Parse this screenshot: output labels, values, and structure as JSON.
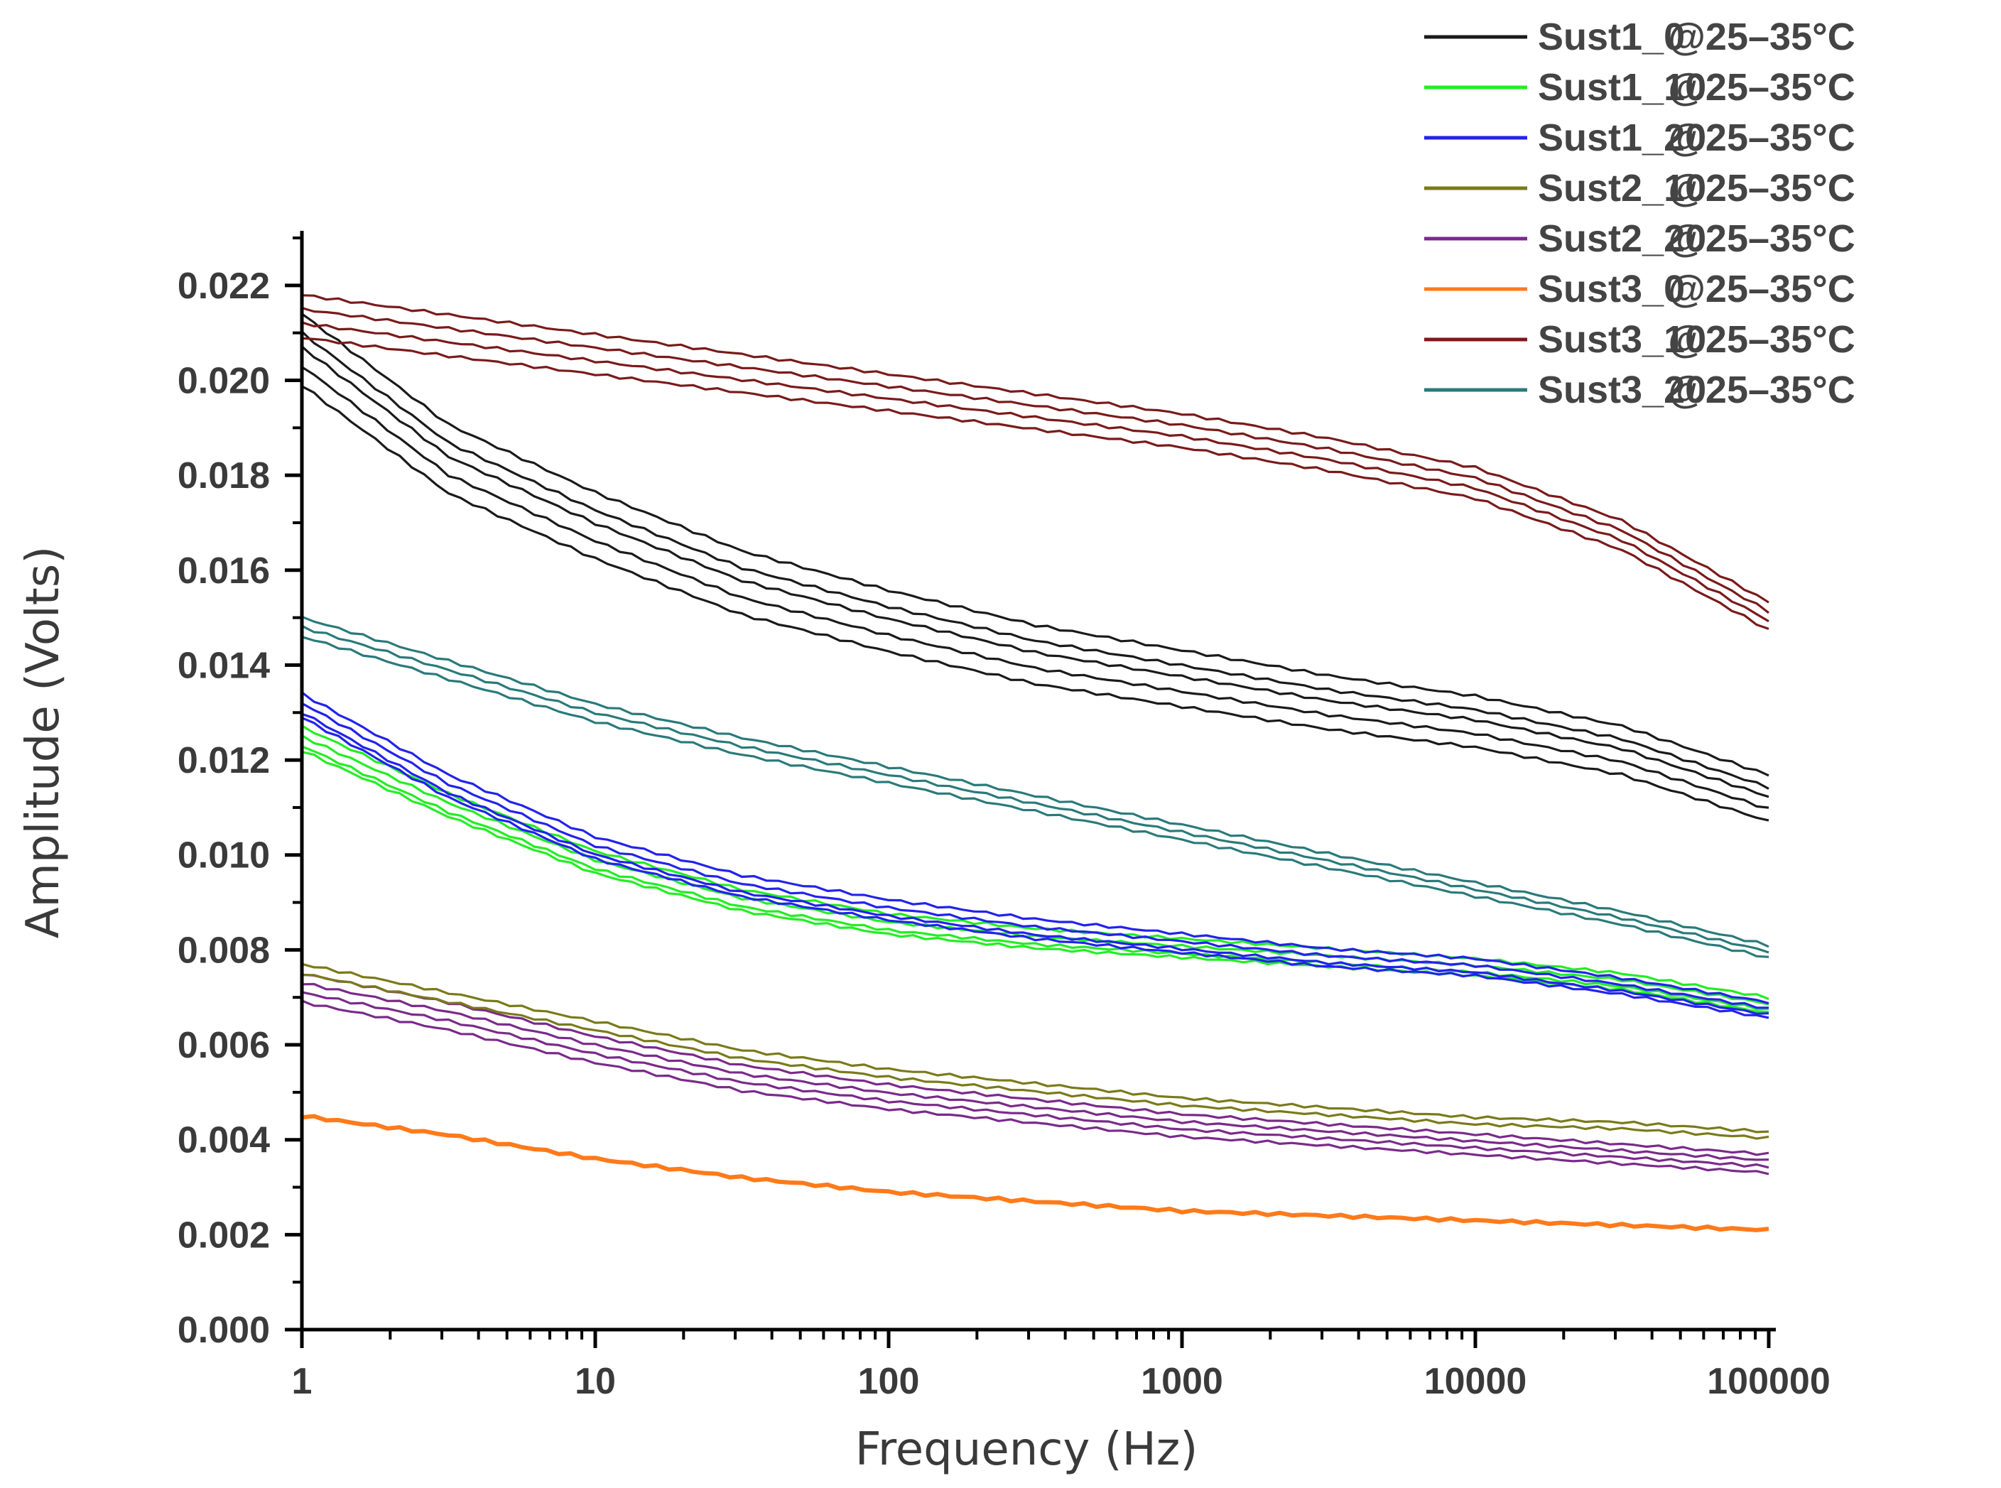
{
  "chart_data": {
    "type": "line",
    "title": "",
    "xlabel": "Frequency (Hz)",
    "ylabel": "Amplitude (Volts)",
    "xscale": "log",
    "xlim": [
      1,
      100000
    ],
    "ylim": [
      0,
      0.023
    ],
    "x_ticks": [
      1,
      10,
      100,
      1000,
      10000,
      100000
    ],
    "x_tick_labels": [
      "1",
      "10",
      "100",
      "1000",
      "10000",
      "100000"
    ],
    "y_ticks": [
      0,
      0.002,
      0.004,
      0.006,
      0.008,
      0.01,
      0.012,
      0.014,
      0.016,
      0.018,
      0.02,
      0.022
    ],
    "y_tick_labels": [
      "0.000",
      "0.002",
      "0.004",
      "0.006",
      "0.008",
      "0.010",
      "0.012",
      "0.014",
      "0.016",
      "0.018",
      "0.020",
      "0.022"
    ],
    "legend_position": "top-right",
    "legend_condition": "@25–35°C",
    "x": [
      1,
      3,
      10,
      30,
      100,
      300,
      1000,
      3000,
      10000,
      30000,
      100000
    ],
    "series": [
      {
        "name": "Sust1_0",
        "color": "#1a1a1a",
        "offsets": [
          0.0009,
          0.0005,
          0.0002,
          -0.0002,
          -0.0006
        ],
        "values": [
          0.0205,
          0.0182,
          0.0168,
          0.0156,
          0.0148,
          0.0141,
          0.0136,
          0.0131,
          0.0127,
          0.0121,
          0.0111
        ]
      },
      {
        "name": "Sust1_10",
        "color": "#22ee22",
        "offsets": [
          0.0003,
          0.0001,
          -0.0001,
          -0.0002
        ],
        "values": [
          0.0124,
          0.011,
          0.0098,
          0.009,
          0.0085,
          0.0082,
          0.008,
          0.0078,
          0.0076,
          0.0073,
          0.0068
        ]
      },
      {
        "name": "Sust1_20",
        "color": "#2222ee",
        "offsets": [
          0.0003,
          0.0001,
          -0.0001,
          -0.0002
        ],
        "values": [
          0.0131,
          0.0114,
          0.0101,
          0.0093,
          0.0088,
          0.0084,
          0.0081,
          0.0078,
          0.0076,
          0.0072,
          0.0067
        ]
      },
      {
        "name": "Sust2_10",
        "color": "#7a7a1a",
        "offsets": [
          0.0001,
          -0.0001
        ],
        "values": [
          0.0076,
          0.007,
          0.0064,
          0.0058,
          0.0054,
          0.0051,
          0.0048,
          0.0046,
          0.0044,
          0.0043,
          0.0041
        ]
      },
      {
        "name": "Sust2_20",
        "color": "#7a2a8a",
        "offsets": [
          0.0003,
          0.0001,
          -0.0001,
          -0.0003
        ],
        "values": [
          0.0072,
          0.0066,
          0.0059,
          0.0053,
          0.0049,
          0.0046,
          0.0043,
          0.0041,
          0.0039,
          0.0037,
          0.0035
        ]
      },
      {
        "name": "Sust3_0",
        "color": "#ff7a1a",
        "offsets": [
          0
        ],
        "values": [
          0.0045,
          0.0041,
          0.0036,
          0.0032,
          0.0029,
          0.0027,
          0.0025,
          0.0024,
          0.0023,
          0.0022,
          0.0021
        ]
      },
      {
        "name": "Sust3_10",
        "color": "#7a1a1a",
        "offsets": [
          0.0005,
          0.0002,
          -0.0001,
          -0.0004
        ],
        "values": [
          0.0213,
          0.0209,
          0.0205,
          0.0201,
          0.0197,
          0.0193,
          0.0189,
          0.0184,
          0.0178,
          0.0167,
          0.015
        ]
      },
      {
        "name": "Sust3_20",
        "color": "#2a7a7a",
        "offsets": [
          0.0003,
          0.0001,
          -0.0001
        ],
        "values": [
          0.0147,
          0.0138,
          0.0129,
          0.0122,
          0.0116,
          0.011,
          0.0104,
          0.0098,
          0.0092,
          0.0086,
          0.0079
        ]
      }
    ]
  }
}
